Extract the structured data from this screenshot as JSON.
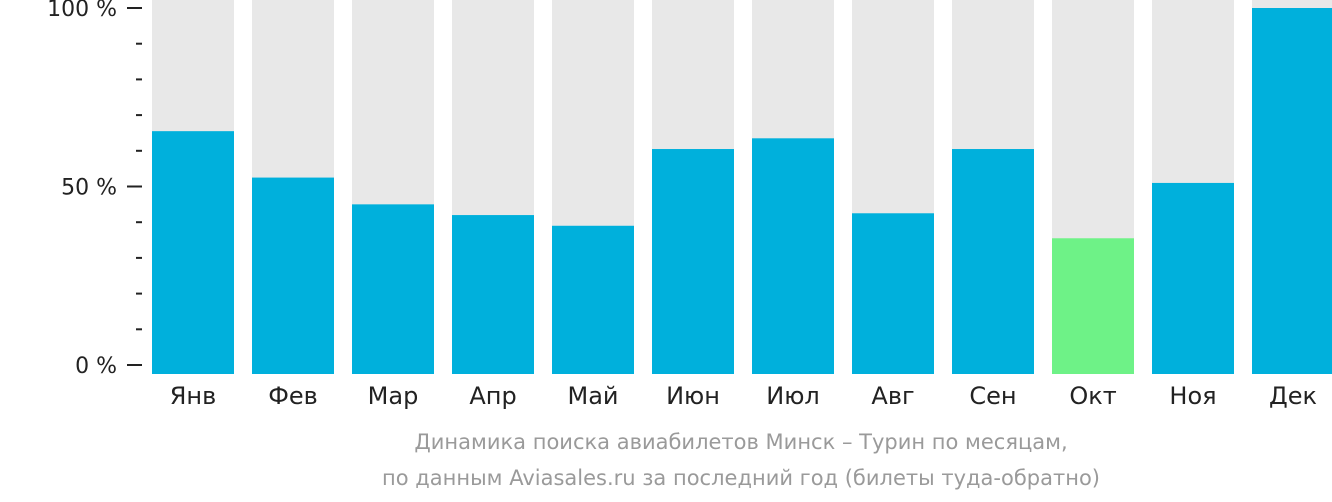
{
  "chart_data": {
    "type": "bar",
    "categories": [
      "Янв",
      "Фев",
      "Мар",
      "Апр",
      "Май",
      "Июн",
      "Июл",
      "Авг",
      "Сен",
      "Окт",
      "Ноя",
      "Дек"
    ],
    "values": [
      65.5,
      52.5,
      45,
      42,
      39,
      60.5,
      63.5,
      42.5,
      60.5,
      35.5,
      51,
      100
    ],
    "ylim": [
      0,
      100
    ],
    "y_ticks": [
      "0 %",
      "50 %",
      "100 %"
    ],
    "highlight_index": 9,
    "colors": {
      "bar": "#00b0dc",
      "highlight": "#6ef287",
      "track": "#e8e8e8",
      "axis": "#222222"
    }
  },
  "caption": {
    "line1": "Динамика поиска авиабилетов Минск – Турин по месяцам,",
    "line2": "по данным Aviasales.ru за последний год (билеты туда-обратно)"
  }
}
